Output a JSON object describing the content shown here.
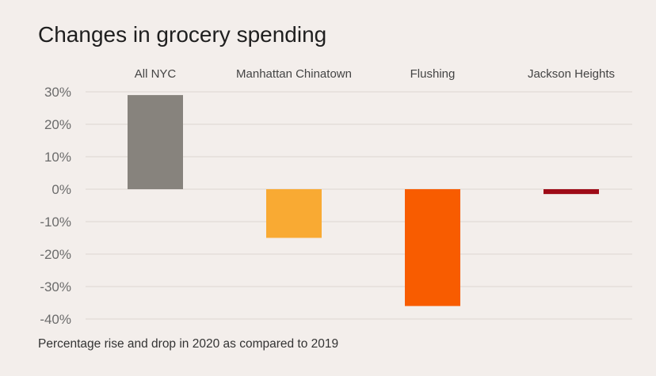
{
  "chart_data": {
    "type": "bar",
    "title": "Changes in grocery spending",
    "caption": "Percentage rise and drop in 2020 as compared to 2019",
    "categories": [
      "All NYC",
      "Manhattan Chinatown",
      "Flushing",
      "Jackson Heights"
    ],
    "values": [
      29,
      -15,
      -36,
      -1.5
    ],
    "colors": [
      "#87837d",
      "#f9aa33",
      "#f85c00",
      "#9e0a17"
    ],
    "yticks": [
      "30%",
      "20%",
      "10%",
      "0%",
      "-10%",
      "-20%",
      "-30%",
      "-40%"
    ],
    "ytick_values": [
      30,
      20,
      10,
      0,
      -10,
      -20,
      -30,
      -40
    ],
    "ylim": [
      -40,
      30
    ],
    "grid": true,
    "category_label_position": "top"
  }
}
